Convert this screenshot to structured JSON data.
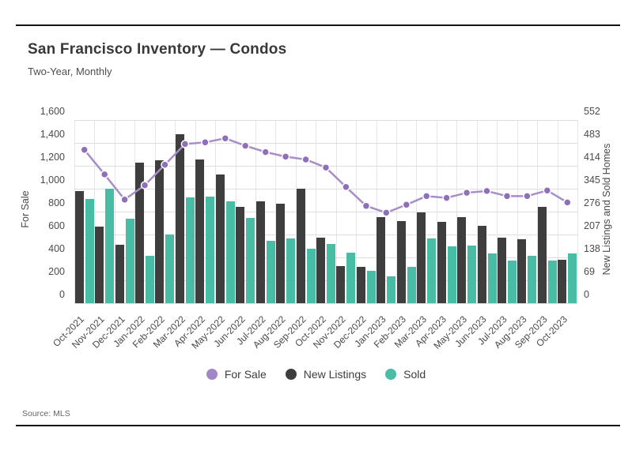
{
  "header": {
    "title": "San Francisco Inventory — Condos",
    "subtitle": "Two-Year, Monthly"
  },
  "footer": {
    "source": "Source: MLS"
  },
  "colors": {
    "for_sale_line": "#a78ec9",
    "for_sale_marker": "#8f6fba",
    "new_listings_bar": "#3e3e3e",
    "sold_bar": "#48bca4",
    "gridline": "#dedede"
  },
  "chart_data": {
    "type": "combo_bar_line",
    "title": "San Francisco Inventory — Condos",
    "subtitle": "Two-Year, Monthly",
    "categories": [
      "Oct-2021",
      "Nov-2021",
      "Dec-2021",
      "Jan-2022",
      "Feb-2022",
      "Mar-2022",
      "Apr-2022",
      "May-2022",
      "Jun-2022",
      "Jul-2022",
      "Aug-2022",
      "Sep-2022",
      "Oct-2022",
      "Nov-2022",
      "Dec-2022",
      "Jan-2023",
      "Feb-2023",
      "Mar-2023",
      "Apr-2023",
      "May-2023",
      "Jun-2023",
      "Jul-2023",
      "Aug-2023",
      "Sep-2023",
      "Oct-2023"
    ],
    "series": [
      {
        "name": "For Sale",
        "type": "line",
        "axis": "left",
        "color": "#a78ec9",
        "marker_color": "#8f6fba",
        "values": [
          1340,
          1125,
          905,
          1030,
          1210,
          1390,
          1405,
          1440,
          1375,
          1320,
          1280,
          1255,
          1185,
          1015,
          850,
          790,
          860,
          935,
          920,
          965,
          980,
          935,
          935,
          985,
          880
        ]
      },
      {
        "name": "New Listings",
        "type": "bar",
        "axis": "right",
        "color": "#3e3e3e",
        "values": [
          339,
          230,
          175,
          423,
          431,
          510,
          434,
          389,
          291,
          307,
          300,
          345,
          198,
          113,
          109,
          260,
          248,
          274,
          244,
          260,
          233,
          198,
          192,
          291,
          130
        ]
      },
      {
        "name": "Sold",
        "type": "bar",
        "axis": "right",
        "color": "#48bca4",
        "values": [
          314,
          345,
          255,
          142,
          207,
          320,
          321,
          306,
          257,
          187,
          194,
          165,
          178,
          152,
          98,
          80,
          110,
          195,
          172,
          174,
          151,
          128,
          143,
          128,
          150
        ]
      }
    ],
    "left_axis": {
      "title": "For Sale",
      "min": 0,
      "max": 1600,
      "tick_labels": [
        "0",
        "200",
        "400",
        "600",
        "800",
        "1,000",
        "1,200",
        "1,400",
        "1,600"
      ]
    },
    "right_axis": {
      "title": "New Listings and Sold Homes",
      "min": 0,
      "max": 552,
      "tick_labels": [
        "0",
        "69",
        "138",
        "207",
        "276",
        "345",
        "414",
        "483",
        "552"
      ]
    },
    "legend": [
      {
        "label": "For Sale",
        "color": "#a287c6"
      },
      {
        "label": "New Listings",
        "color": "#3e3e3e"
      },
      {
        "label": "Sold",
        "color": "#48bca4"
      }
    ],
    "grid": "horizontal and vertical light gray gridlines",
    "legend_position": "bottom center",
    "x_label_rotation": -45
  }
}
